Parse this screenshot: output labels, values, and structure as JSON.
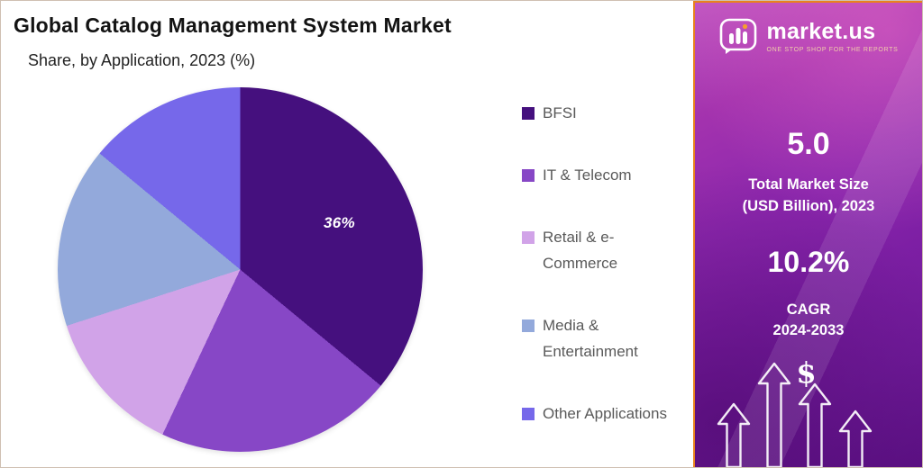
{
  "title": "Global Catalog Management System Market",
  "subtitle": "Share, by Application, 2023 (%)",
  "chart_data": {
    "type": "pie",
    "title": "Global Catalog Management System Market",
    "subtitle": "Share, by Application, 2023 (%)",
    "unit": "%",
    "start_angle_deg": 0,
    "direction": "clockwise",
    "legend_position": "right",
    "labeled_slice": {
      "label": "BFSI",
      "text": "36%"
    },
    "series": [
      {
        "label": "BFSI",
        "value": 36,
        "color": "#45107E"
      },
      {
        "label": "IT & Telecom",
        "value": 21,
        "color": "#8747C6"
      },
      {
        "label": "Retail & e-Commerce",
        "value": 13,
        "color": "#D1A3E8"
      },
      {
        "label": "Media & Entertainment",
        "value": 16,
        "color": "#93A9DB"
      },
      {
        "label": "Other Applications",
        "value": 14,
        "color": "#7668EA"
      }
    ]
  },
  "sidebar": {
    "logo_name": "market.us",
    "logo_tagline": "ONE STOP SHOP FOR THE REPORTS",
    "stat1_value": "5.0",
    "stat1_label_line1": "Total Market Size",
    "stat1_label_line2": "(USD Billion), 2023",
    "stat2_value": "10.2%",
    "stat2_label_line1": "CAGR",
    "stat2_label_line2": "2024-2033",
    "dollar_symbol": "$",
    "accent_border_color": "#E8821E"
  }
}
